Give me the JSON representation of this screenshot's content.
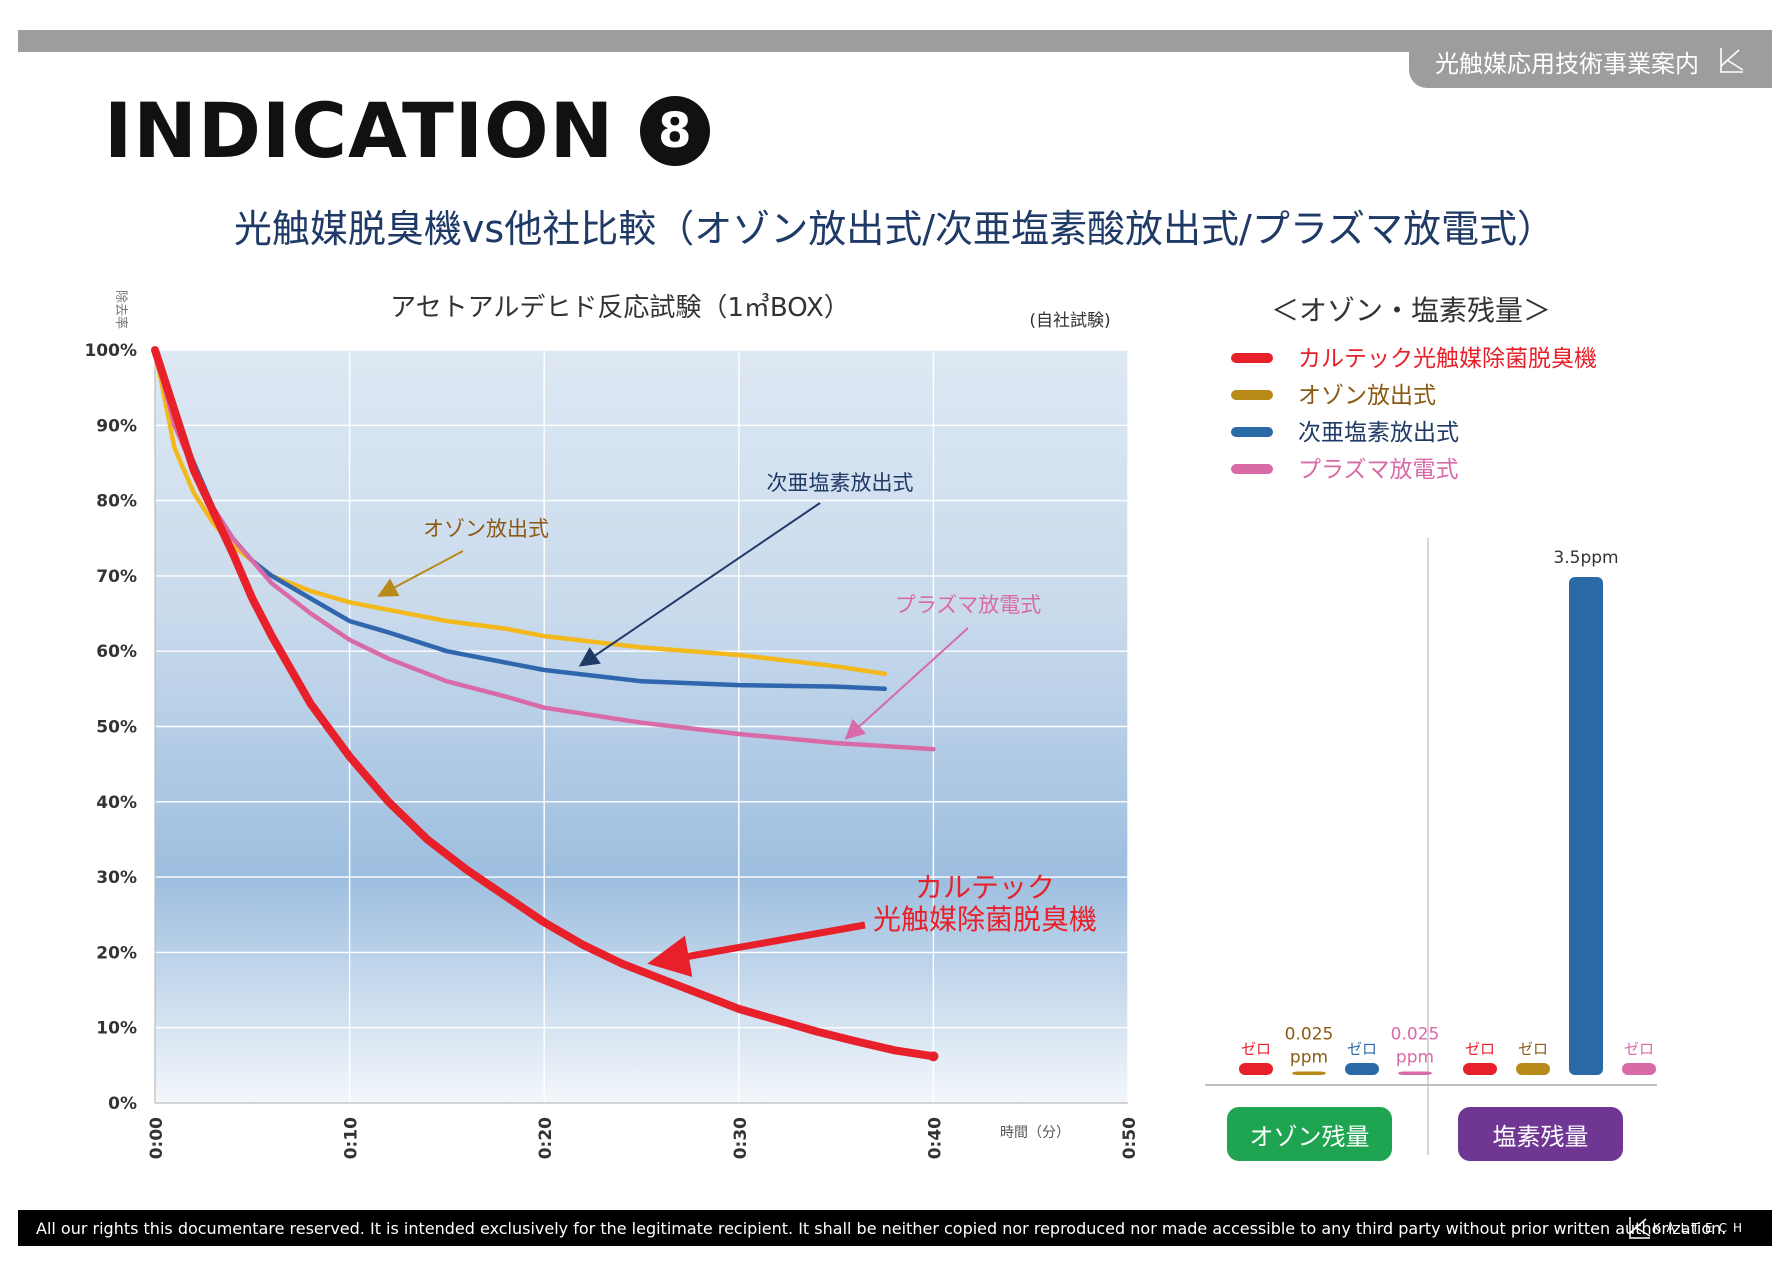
{
  "header": {
    "tab_label": "光触媒応用技術事業案内"
  },
  "page": {
    "title": "INDICATION",
    "badge": "8",
    "subtitle": "光触媒脱臭機vs他社比較（オゾン放出式/次亜塩素酸放出式/プラズマ放電式）"
  },
  "footer": {
    "notice": "All our rights this documentare reserved. It is intended exclusively for the legitimate recipient. It shall be neither copied nor reproduced nor made accessible to any third party without prior written authorization.",
    "logo_text": "KALTECH"
  },
  "colors": {
    "red": "#e8202a",
    "ozone": "#f3b81b",
    "hypo": "#2f66ad",
    "plasma": "#d96aa8",
    "ozone_bar": "#b88a1a",
    "hypo_bar": "#2a6aa6",
    "green": "#1fa552",
    "purple": "#6f3693"
  },
  "chart_data": [
    {
      "type": "line",
      "title": "アセトアルデヒド反応試験（1㎥BOX）",
      "note": "(自社試験)",
      "ylabel": "除去率",
      "xlabel": "時間（分）",
      "xlim": [
        0,
        50
      ],
      "ylim": [
        0,
        100
      ],
      "x_ticks": [
        "0:00",
        "0:10",
        "0:20",
        "0:30",
        "0:40",
        "0:50"
      ],
      "y_ticks": [
        "0%",
        "10%",
        "20%",
        "30%",
        "40%",
        "50%",
        "60%",
        "70%",
        "80%",
        "90%",
        "100%"
      ],
      "series": [
        {
          "name": "カルテック光触媒除菌脱臭機",
          "color": "#e8202a",
          "x": [
            0,
            2,
            4,
            5,
            6,
            8,
            10,
            12,
            14,
            16,
            18,
            20,
            22,
            24,
            26,
            28,
            30,
            32,
            34,
            36,
            38,
            40
          ],
          "y": [
            100,
            84,
            73,
            67,
            62,
            53,
            46,
            40,
            35,
            31,
            27.5,
            24,
            21,
            18.5,
            16.5,
            14.5,
            12.5,
            11,
            9.5,
            8.2,
            7,
            6.2
          ]
        },
        {
          "name": "オゾン放出式",
          "color": "#f3b81b",
          "x": [
            0,
            1,
            2,
            3,
            4,
            5,
            6,
            8,
            10,
            12,
            15,
            18,
            20,
            25,
            30,
            35,
            37.5
          ],
          "y": [
            100,
            87,
            81,
            77,
            74,
            72,
            70,
            68,
            66.5,
            65.5,
            64,
            63,
            62,
            60.5,
            59.5,
            58,
            57
          ]
        },
        {
          "name": "次亜塩素放出式",
          "color": "#2f66ad",
          "x": [
            0,
            1,
            2,
            3,
            4,
            5,
            6,
            8,
            10,
            12,
            15,
            18,
            20,
            25,
            30,
            35,
            37.5
          ],
          "y": [
            100,
            91,
            85,
            79,
            75,
            72,
            70,
            67,
            64,
            62.5,
            60,
            58.5,
            57.5,
            56,
            55.5,
            55.3,
            55
          ]
        },
        {
          "name": "プラズマ放電式",
          "color": "#d96aa8",
          "x": [
            0,
            1,
            2,
            3,
            4,
            5,
            6,
            8,
            10,
            12,
            15,
            18,
            20,
            25,
            30,
            35,
            40
          ],
          "y": [
            100,
            90,
            84,
            79,
            75,
            72,
            69,
            65,
            61.5,
            59,
            56,
            54,
            52.5,
            50.5,
            49,
            47.8,
            47
          ]
        }
      ],
      "annotations": [
        {
          "text": "オゾン放出式",
          "color": "#8a5a14"
        },
        {
          "text": "次亜塩素放出式",
          "color": "#1f3a66"
        },
        {
          "text": "プラズマ放電式",
          "color": "#d96aa8"
        },
        {
          "text": "カルテック",
          "color": "#e8202a"
        },
        {
          "text": "光触媒除菌脱臭機",
          "color": "#e8202a"
        }
      ]
    },
    {
      "type": "bar",
      "title": "＜オゾン・塩素残量＞",
      "legend": [
        "カルテック光触媒除菌脱臭機",
        "オゾン放出式",
        "次亜塩素放出式",
        "プラズマ放電式"
      ],
      "groups": [
        {
          "name": "オゾン残量",
          "bars": [
            {
              "series": "カルテック光触媒除菌脱臭機",
              "value": 0,
              "label": "ゼロ"
            },
            {
              "series": "オゾン放出式",
              "value": 0.025,
              "label": "0.025",
              "unit": "ppm"
            },
            {
              "series": "次亜塩素放出式",
              "value": 0,
              "label": "ゼロ"
            },
            {
              "series": "プラズマ放電式",
              "value": 0.025,
              "label": "0.025",
              "unit": "ppm"
            }
          ]
        },
        {
          "name": "塩素残量",
          "bars": [
            {
              "series": "カルテック光触媒除菌脱臭機",
              "value": 0,
              "label": "ゼロ"
            },
            {
              "series": "オゾン放出式",
              "value": 0,
              "label": "ゼロ"
            },
            {
              "series": "次亜塩素放出式",
              "value": 3.5,
              "label": "3.5ppm"
            },
            {
              "series": "プラズマ放電式",
              "value": 0,
              "label": "ゼロ"
            }
          ]
        }
      ]
    }
  ]
}
